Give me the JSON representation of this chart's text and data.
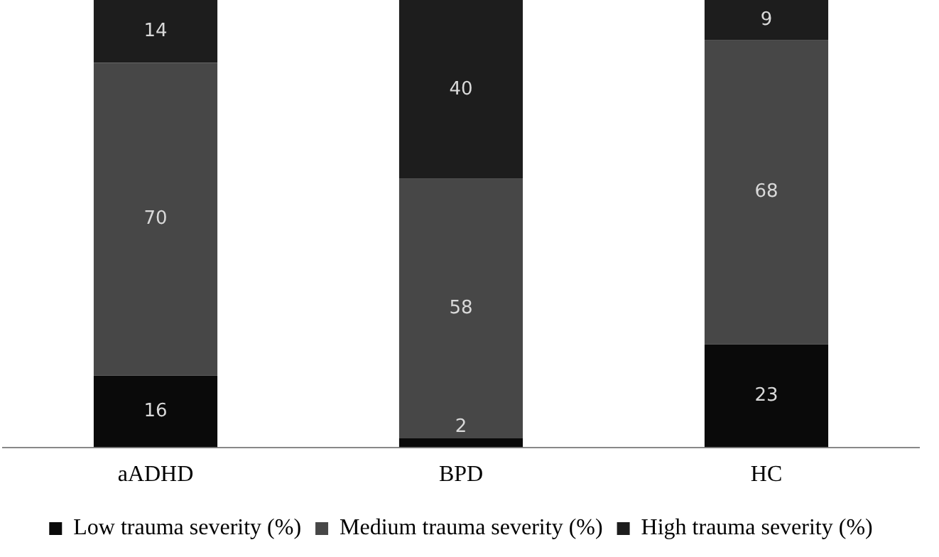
{
  "chart_data": {
    "type": "bar",
    "stacked": true,
    "categories": [
      "aADHD",
      "BPD",
      "HC"
    ],
    "series": [
      {
        "name": "Low trauma severity (%)",
        "color": "#0a0a0a",
        "values": [
          16,
          2,
          23
        ]
      },
      {
        "name": "Medium trauma severity (%)",
        "color": "#474747",
        "values": [
          70,
          58,
          68
        ]
      },
      {
        "name": "High trauma severity (%)",
        "color": "#1d1d1d",
        "values": [
          14,
          40,
          9
        ]
      }
    ],
    "ylim": [
      0,
      100
    ],
    "tick_labels": "x",
    "grid": false,
    "legend": "bottom",
    "data_labels": true
  }
}
